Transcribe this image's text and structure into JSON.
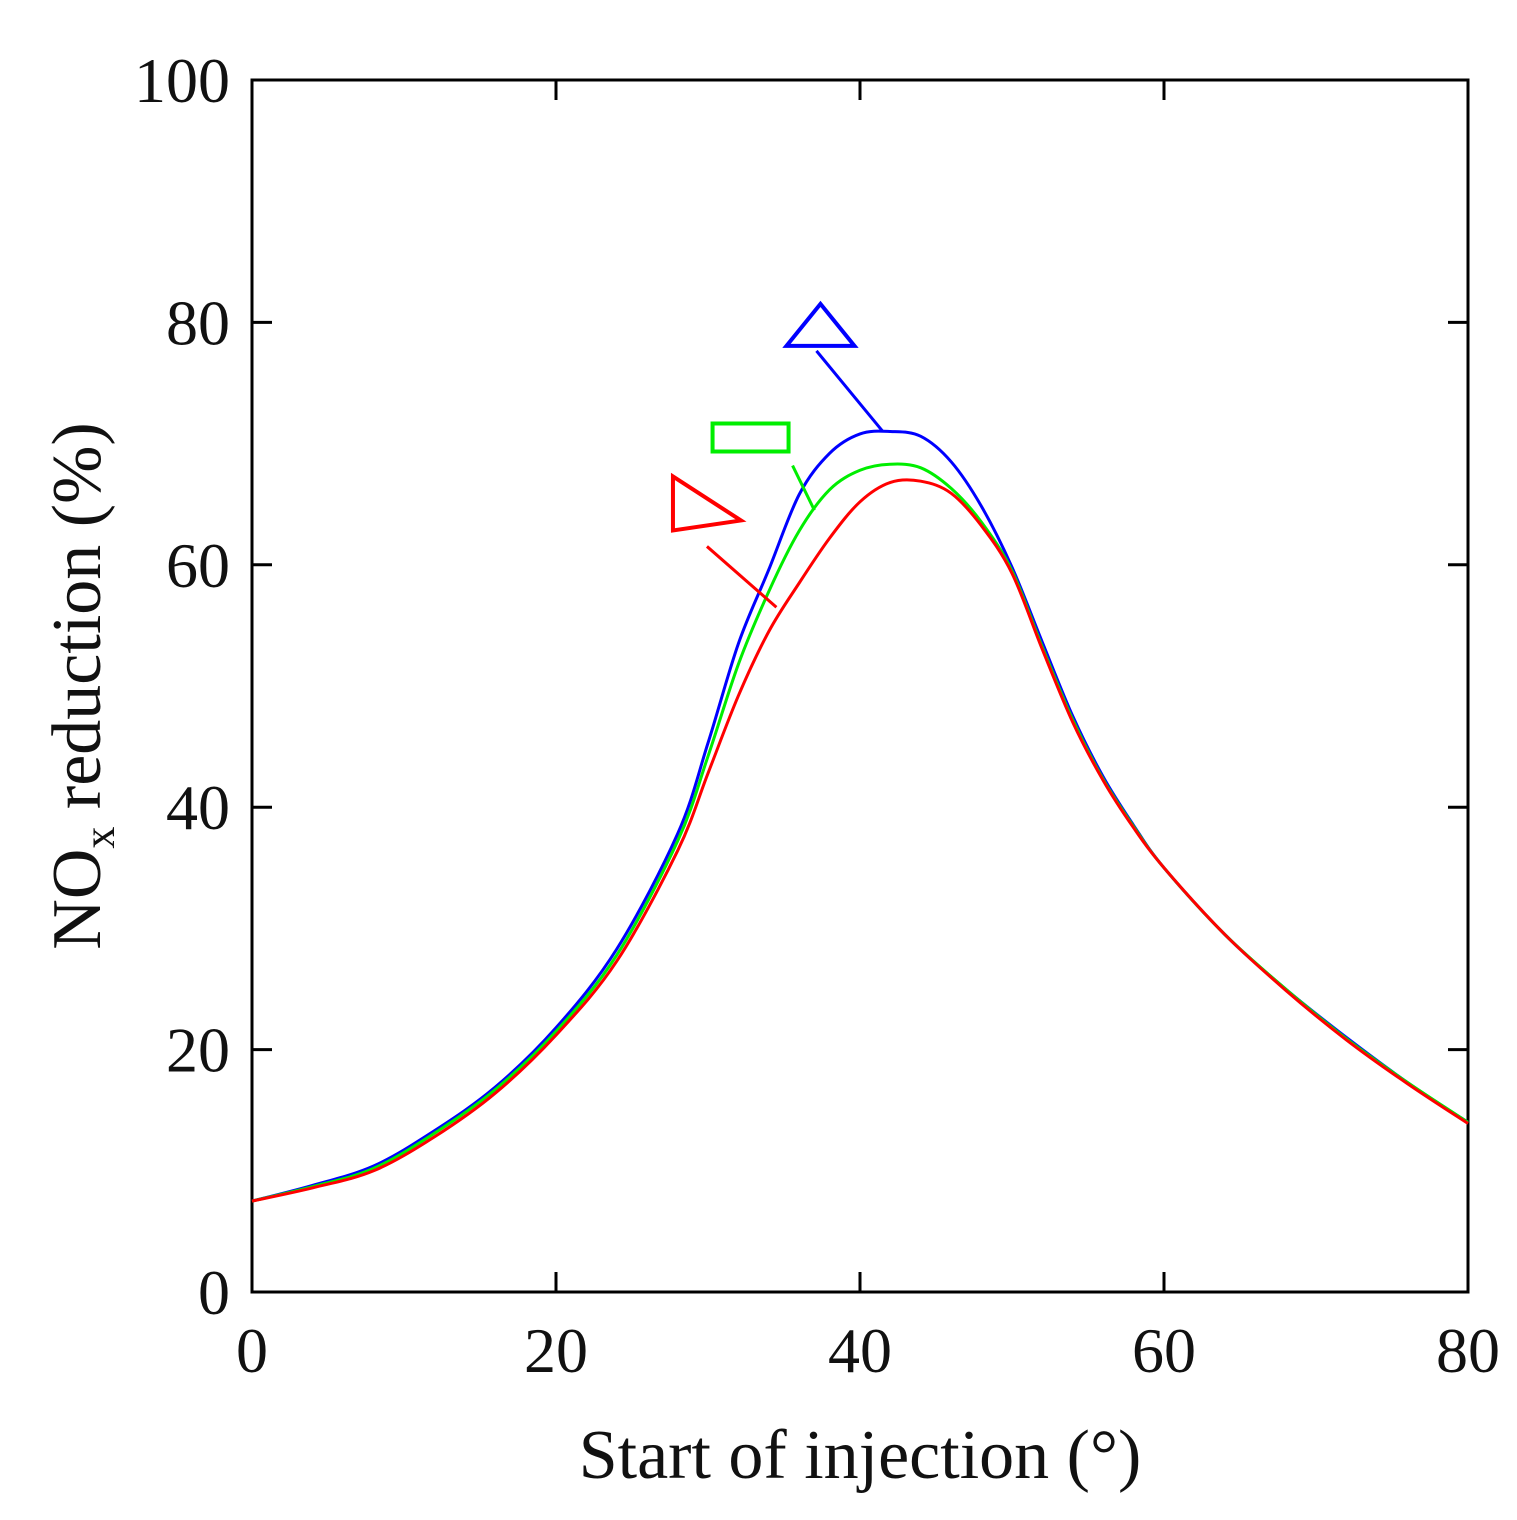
{
  "chart_data": {
    "type": "line",
    "title": "",
    "xlabel": "Start of injection (°)",
    "ylabel_main": "NO",
    "ylabel_sub": "x",
    "ylabel_rest": " reduction (%)",
    "xlim": [
      0,
      80
    ],
    "ylim": [
      0,
      100
    ],
    "xticks": [
      0,
      20,
      40,
      60,
      80
    ],
    "yticks": [
      0,
      20,
      40,
      60,
      80,
      100
    ],
    "xtick_labels": [
      "0",
      "20",
      "40",
      "60",
      "80"
    ],
    "ytick_labels": [
      "0",
      "20",
      "40",
      "60",
      "80",
      "100"
    ],
    "grid": false,
    "series": [
      {
        "name": "triangle-up",
        "marker": "triangle-up",
        "color": "#0000ff",
        "x": [
          0,
          4,
          8,
          12,
          16,
          20,
          24,
          28,
          30,
          32,
          34,
          36,
          38,
          40,
          42,
          44,
          46,
          48,
          50,
          52,
          54,
          56,
          58,
          60,
          64,
          68,
          72,
          76,
          80
        ],
        "y": [
          7.5,
          8.8,
          10.4,
          13.3,
          16.9,
          21.8,
          28.3,
          37.8,
          45.3,
          53.5,
          59.6,
          65.8,
          69.2,
          70.8,
          71.0,
          70.6,
          68.5,
          64.8,
          59.8,
          53.6,
          47.5,
          42.5,
          38.5,
          35.0,
          29.5,
          25.0,
          21.0,
          17.3,
          14.0
        ],
        "label_x": 37.4,
        "label_y": 79.3,
        "leader_end_x": 41.5,
        "leader_end_y": 71.0
      },
      {
        "name": "square",
        "marker": "square",
        "color": "#00ee00",
        "x": [
          0,
          4,
          8,
          12,
          16,
          20,
          24,
          28,
          30,
          32,
          34,
          36,
          38,
          40,
          42,
          44,
          46,
          48,
          50,
          52,
          54,
          56,
          58,
          60,
          64,
          68,
          72,
          76,
          80
        ],
        "y": [
          7.5,
          8.7,
          10.2,
          13.1,
          16.7,
          21.5,
          27.8,
          37.2,
          44.2,
          51.8,
          57.8,
          62.8,
          66.2,
          67.8,
          68.3,
          68.0,
          66.3,
          63.5,
          59.5,
          53.2,
          47.2,
          42.3,
          38.4,
          35.0,
          29.5,
          25.0,
          20.9,
          17.3,
          14.0
        ],
        "label_x": 32.8,
        "label_y": 70.5,
        "leader_end_x": 37.0,
        "leader_end_y": 64.5
      },
      {
        "name": "triangle-right",
        "marker": "triangle-right",
        "color": "#ff0000",
        "x": [
          0,
          4,
          8,
          12,
          16,
          20,
          24,
          28,
          30,
          32,
          34,
          36,
          38,
          40,
          42,
          44,
          46,
          48,
          50,
          52,
          54,
          56,
          58,
          60,
          64,
          68,
          72,
          76,
          80
        ],
        "y": [
          7.5,
          8.6,
          10.0,
          12.8,
          16.4,
          21.2,
          27.3,
          36.4,
          42.8,
          49.2,
          54.5,
          58.5,
          62.2,
          65.2,
          66.8,
          66.9,
          65.9,
          63.2,
          59.3,
          53.0,
          47.0,
          42.2,
          38.3,
          35.0,
          29.5,
          24.9,
          20.8,
          17.2,
          13.9
        ],
        "label_x": 29.8,
        "label_y": 63.0,
        "leader_end_x": 34.5,
        "leader_end_y": 56.5
      }
    ]
  }
}
